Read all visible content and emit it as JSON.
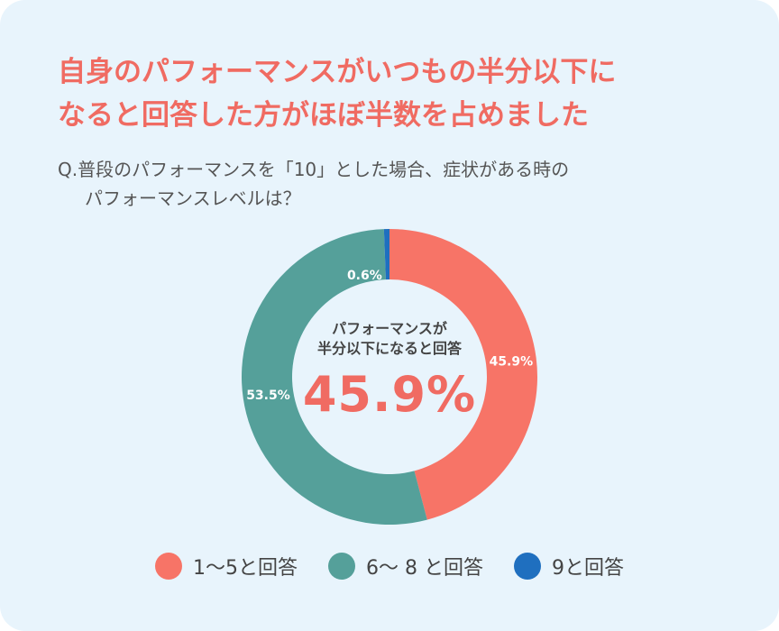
{
  "title_lines": [
    "自身のパフォーマンスがいつもの半分以下に",
    "なると回答した方がほぼ半数を占めました"
  ],
  "question_lines": [
    "Q.普段のパフォーマンスを「10」とした場合、症状がある時の",
    "パフォーマンスレベルは？"
  ],
  "center": {
    "caption_lines": [
      "パフォーマンスが",
      "半分以下になると回答"
    ],
    "value": "45.9%"
  },
  "colors": {
    "background": "#e8f4fc",
    "title": "#f06b62",
    "slice_1_5": "#f77467",
    "slice_6_8": "#55a09a",
    "slice_9": "#1f6fbf"
  },
  "legend": [
    {
      "label": "1〜5と回答",
      "color": "#f77467"
    },
    {
      "label": "6〜 8 と回答",
      "color": "#55a09a"
    },
    {
      "label": "9と回答",
      "color": "#1f6fbf"
    }
  ],
  "chart_data": {
    "type": "pie",
    "variant": "donut",
    "categories": [
      "1〜5と回答",
      "6〜 8 と回答",
      "9と回答"
    ],
    "values": [
      45.9,
      53.5,
      0.6
    ],
    "data_labels": [
      "45.9%",
      "53.5%",
      "0.6%"
    ],
    "colors": [
      "#f77467",
      "#55a09a",
      "#1f6fbf"
    ],
    "unit": "%",
    "start": "top",
    "direction": "clockwise",
    "legend_position": "bottom"
  }
}
